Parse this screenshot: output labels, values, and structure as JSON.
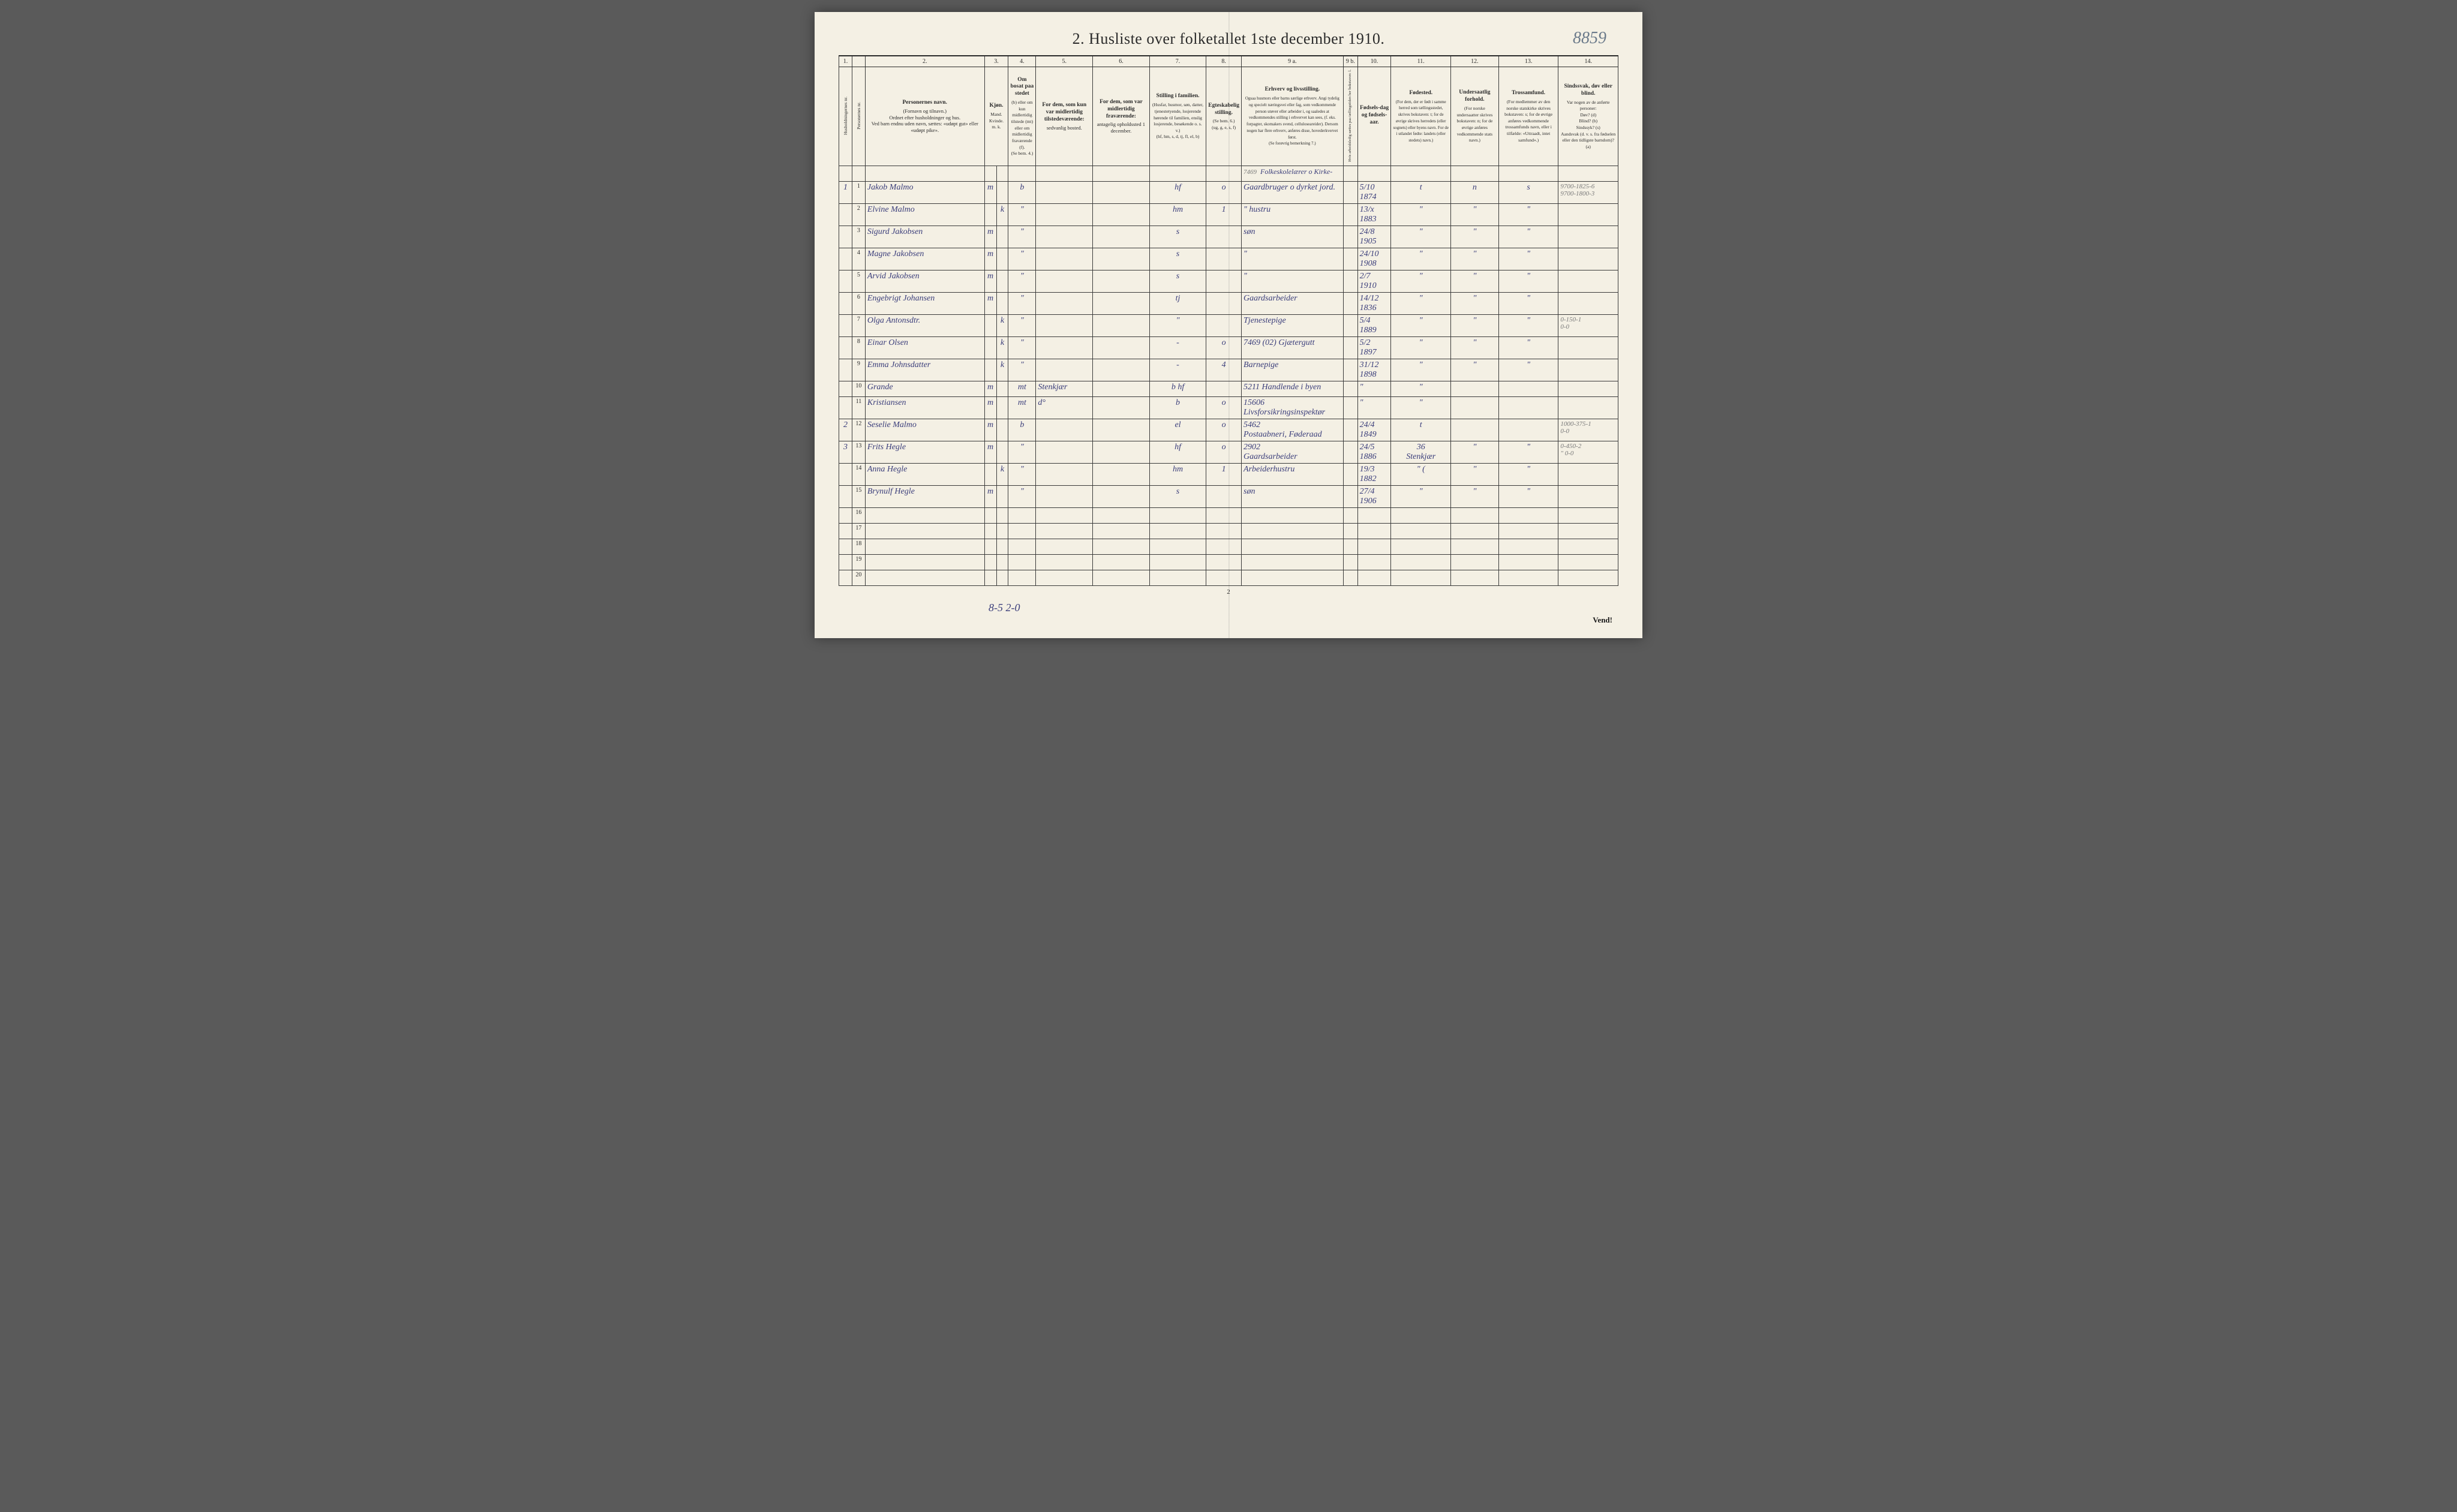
{
  "corner_note": "8859",
  "title": "2.  Husliste over folketallet 1ste december 1910.",
  "footer_page": "2",
  "bottom_tally": "8-5   2-0",
  "vend": "Vend!",
  "colnums": [
    "1.",
    "",
    "2.",
    "3.",
    "",
    "4.",
    "5.",
    "6.",
    "7.",
    "8.",
    "9 a.",
    "9 b.",
    "10.",
    "11.",
    "12.",
    "13.",
    "14."
  ],
  "headers": {
    "c1": "Husholdningernes nr.",
    "c2": "Personernes nr.",
    "c3_title": "Personernes navn.",
    "c3_sub": "(Fornavn og tilnavn.)\nOrdnet efter husholdninger og hus.\nVed barn endnu uden navn, sættes: «udøpt gut» eller «udøpt pike».",
    "c4_title": "Kjøn.",
    "c4_sub": "Mand.  Kvinde.\nm.  k.",
    "c5_title": "Om bosat paa stedet",
    "c5_sub": "(b) eller om kun midlertidig tilstede (mt) eller om midlertidig fraværende (f).\n(Se bem. 4.)",
    "c6_title": "For dem, som kun var midlertidig tilstedeværende:",
    "c6_sub": "sedvanlig bosted.",
    "c7_title": "For dem, som var midlertidig fraværende:",
    "c7_sub": "antagelig opholdssted 1 december.",
    "c8_title": "Stilling i familien.",
    "c8_sub": "(Husfar, husmor, søn, datter, tjenestetyende, losjerende hørende til familien, enslig losjerende, besøkende o. s. v.)\n(hf, hm, s, d, tj, fl, el, b)",
    "c9_title": "Egteskabelig stilling.",
    "c9_sub": "(Se bem. 6.)\n(ug, g, e, s, f)",
    "c10_title": "Erhverv og livsstilling.",
    "c10_sub": "Ogsaa husmors eller barns særlige erhverv. Angi tydelig og specielt næringsvei eller fag, som vedkommende person utøver eller arbeider i, og saaledes at vedkommendes stilling i erhvervet kan sees, (f. eks. forpagter, skomakers svend, celluloseareider). Dersom nogen har flere erhverv, anføres disse, hovederkvervet først.\n(Se forøvrig bemerkning 7.)",
    "c11": "Hvis arbeidsledig sættes paa tællingstiden her bokstaven: l.",
    "c12_title": "Fødsels-dag og fødsels-aar.",
    "c13_title": "Fødested.",
    "c13_sub": "(For dem, der er født i samme herred som tællingsstedet, skrives bokstaven: t; for de øvrige skrives herredets (eller sognets) eller byens navn. For de i utlandet fødte: landets (eller stedets) navn.)",
    "c14_title": "Undersaatlig forhold.",
    "c14_sub": "(For norske undersaatter skrives bokstaven: n; for de øvrige anføres vedkommende stats navn.)",
    "c15_title": "Trossamfund.",
    "c15_sub": "(For medlemmer av den norske statskirke skrives bokstaven: s; for de øvrige anføres vedkommende trossamfunds navn, eller i tilfælde: «Uttraadt, intet samfund».)",
    "c16_title": "Sindssvak, døv eller blind.",
    "c16_sub": "Var nogen av de anførte personer:\nDøv? (d)\nBlind? (b)\nSindssyk? (s)\nAandsvak (d. v. s. fra fødselen eller den tidligste barndom)? (a)"
  },
  "top_annot": "7469",
  "top_annot2": "Folkeskolelærer o Kirke-",
  "rows": [
    {
      "hh": "1",
      "n": "1",
      "name": "Jakob Malmo",
      "mk": "m",
      "res": "b",
      "c6": "",
      "c7": "",
      "fam": "hf",
      "eg": "o",
      "erhv": "Gaardbruger o dyrket jord.",
      "dob": "5/10 1874",
      "fsted": "t",
      "und": "n",
      "tro": "s",
      "note": "9700-1825-6\n9700-1800-3"
    },
    {
      "hh": "",
      "n": "2",
      "name": "Elvine Malmo",
      "mk": "k",
      "res": "\"",
      "c6": "",
      "c7": "",
      "fam": "hm",
      "eg": "1",
      "erhv": "\"   hustru",
      "dob": "13/x 1883",
      "fsted": "\"",
      "und": "\"",
      "tro": "\"",
      "note": ""
    },
    {
      "hh": "",
      "n": "3",
      "name": "Sigurd Jakobsen",
      "mk": "m",
      "res": "\"",
      "c6": "",
      "c7": "",
      "fam": "s",
      "eg": "",
      "erhv": "søn",
      "dob": "24/8 1905",
      "fsted": "\"",
      "und": "\"",
      "tro": "\"",
      "note": ""
    },
    {
      "hh": "",
      "n": "4",
      "name": "Magne Jakobsen",
      "mk": "m",
      "res": "\"",
      "c6": "",
      "c7": "",
      "fam": "s",
      "eg": "",
      "erhv": "\"",
      "dob": "24/10 1908",
      "fsted": "\"",
      "und": "\"",
      "tro": "\"",
      "note": ""
    },
    {
      "hh": "",
      "n": "5",
      "name": "Arvid Jakobsen",
      "mk": "m",
      "res": "\"",
      "c6": "",
      "c7": "",
      "fam": "s",
      "eg": "",
      "erhv": "\"",
      "dob": "2/7 1910",
      "fsted": "\"",
      "und": "\"",
      "tro": "\"",
      "note": ""
    },
    {
      "hh": "",
      "n": "6",
      "name": "Engebrigt Johansen",
      "mk": "m",
      "res": "\"",
      "c6": "",
      "c7": "",
      "fam": "tj",
      "eg": "",
      "erhv": "Gaardsarbeider",
      "dob": "14/12 1836",
      "fsted": "\"",
      "und": "\"",
      "tro": "\"",
      "note": ""
    },
    {
      "hh": "",
      "n": "7",
      "name": "Olga Antonsdtr.",
      "mk": "k",
      "res": "\"",
      "c6": "",
      "c7": "",
      "fam": "\"",
      "eg": "",
      "erhv": "Tjenestepige",
      "dob": "5/4 1889",
      "fsted": "\"",
      "und": "\"",
      "tro": "\"",
      "note": "0-150-1\n0-0"
    },
    {
      "hh": "",
      "n": "8",
      "name": "Einar Olsen",
      "mk": "k",
      "res": "\"",
      "c6": "",
      "c7": "",
      "fam": "-",
      "eg": "o",
      "erhv": "7469 (02)  Gjætergutt",
      "dob": "5/2 1897",
      "fsted": "\"",
      "und": "\"",
      "tro": "\"",
      "note": ""
    },
    {
      "hh": "",
      "n": "9",
      "name": "Emma Johnsdatter",
      "mk": "k",
      "res": "\"",
      "c6": "",
      "c7": "",
      "fam": "-",
      "eg": "4",
      "erhv": "Barnepige",
      "dob": "31/12 1898",
      "fsted": "\"",
      "und": "\"",
      "tro": "\"",
      "note": ""
    },
    {
      "hh": "",
      "n": "10",
      "name": "Grande",
      "mk": "m",
      "res": "mt",
      "c6": "Stenkjær",
      "c7": "",
      "fam": "b   hf",
      "eg": "",
      "erhv": "5211 Handlende i byen",
      "dob": "\"",
      "fsted": "\"",
      "und": "",
      "tro": "",
      "note": ""
    },
    {
      "hh": "",
      "n": "11",
      "name": "Kristiansen",
      "mk": "m",
      "res": "mt",
      "c6": "d°",
      "c7": "",
      "fam": "b",
      "eg": "o",
      "erhv": "15606\nLivsforsikringsinspektør",
      "dob": "\"",
      "fsted": "\"",
      "und": "",
      "tro": "",
      "note": ""
    },
    {
      "hh": "2",
      "n": "12",
      "name": "Seselie Malmo",
      "mk": "m",
      "res": "b",
      "c6": "",
      "c7": "",
      "fam": "el",
      "eg": "o",
      "erhv": "5462\nPostaabneri, Føderaad",
      "dob": "24/4 1849",
      "fsted": "t",
      "und": "",
      "tro": "",
      "note": "1000-375-1\n0-0"
    },
    {
      "hh": "3",
      "n": "13",
      "name": "Frits Hegle",
      "mk": "m",
      "res": "\"",
      "c6": "",
      "c7": "",
      "fam": "hf",
      "eg": "o",
      "erhv": "2902\nGaardsarbeider",
      "dob": "24/5 1886",
      "fsted": "36\nStenkjær",
      "und": "\"",
      "tro": "\"",
      "note": "0-450-2\n\" 0-0"
    },
    {
      "hh": "",
      "n": "14",
      "name": "Anna Hegle",
      "mk": "k",
      "res": "\"",
      "c6": "",
      "c7": "",
      "fam": "hm",
      "eg": "1",
      "erhv": "Arbeiderhustru",
      "dob": "19/3 1882",
      "fsted": "\"  (",
      "und": "\"",
      "tro": "\"",
      "note": ""
    },
    {
      "hh": "",
      "n": "15",
      "name": "Brynulf Hegle",
      "mk": "m",
      "res": "\"",
      "c6": "",
      "c7": "",
      "fam": "s",
      "eg": "",
      "erhv": "søn",
      "dob": "27/4 1906",
      "fsted": "\"",
      "und": "\"",
      "tro": "\"",
      "note": ""
    },
    {
      "hh": "",
      "n": "16",
      "name": "",
      "mk": "",
      "res": "",
      "c6": "",
      "c7": "",
      "fam": "",
      "eg": "",
      "erhv": "",
      "dob": "",
      "fsted": "",
      "und": "",
      "tro": "",
      "note": ""
    },
    {
      "hh": "",
      "n": "17",
      "name": "",
      "mk": "",
      "res": "",
      "c6": "",
      "c7": "",
      "fam": "",
      "eg": "",
      "erhv": "",
      "dob": "",
      "fsted": "",
      "und": "",
      "tro": "",
      "note": ""
    },
    {
      "hh": "",
      "n": "18",
      "name": "",
      "mk": "",
      "res": "",
      "c6": "",
      "c7": "",
      "fam": "",
      "eg": "",
      "erhv": "",
      "dob": "",
      "fsted": "",
      "und": "",
      "tro": "",
      "note": ""
    },
    {
      "hh": "",
      "n": "19",
      "name": "",
      "mk": "",
      "res": "",
      "c6": "",
      "c7": "",
      "fam": "",
      "eg": "",
      "erhv": "",
      "dob": "",
      "fsted": "",
      "und": "",
      "tro": "",
      "note": ""
    },
    {
      "hh": "",
      "n": "20",
      "name": "",
      "mk": "",
      "res": "",
      "c6": "",
      "c7": "",
      "fam": "",
      "eg": "",
      "erhv": "",
      "dob": "",
      "fsted": "",
      "und": "",
      "tro": "",
      "note": ""
    }
  ]
}
